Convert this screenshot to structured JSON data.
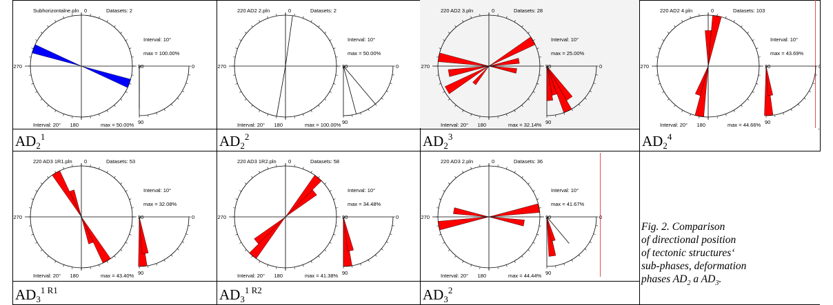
{
  "plots": [
    {
      "id": "ad2-1",
      "file": "Subhorizontalne.pln",
      "datasets": "Datasets: 2",
      "interval_rose": "Interval: 10°",
      "max_rose": "max = 100.00%",
      "interval_bottom": "Interval: 20°",
      "max_bottom": "max = 50.00%",
      "fill": "#0000ff",
      "petals": [
        [
          110,
          1.0
        ]
      ],
      "dip_lines": [
        [
          0.0,
          0.52
        ],
        [
          0.0,
          0.86
        ]
      ],
      "dip_petals": [],
      "labels": {
        "n": "0",
        "e": "90",
        "s": "180",
        "w": "270",
        "r0": "0",
        "r90": "90"
      },
      "caption": {
        "main": "AD",
        "sub": "2",
        "sup": "1"
      }
    },
    {
      "id": "ad2-2",
      "file": "220 AD2 2.pln",
      "datasets": "Datasets: 2",
      "interval_rose": "Interval: 10°",
      "max_rose": "max = 50.00%",
      "interval_bottom": "Interval: 20°",
      "max_bottom": "max = 100.00%",
      "fill": "#ff0000",
      "lines": [
        8,
        190
      ],
      "petals": [],
      "dip_lines": [
        [
          40,
          1.0
        ],
        [
          15,
          1.0
        ]
      ],
      "dip_petals": [],
      "labels": {
        "n": "0",
        "e": "90",
        "s": "180",
        "w": "270",
        "r0": "0",
        "r90": "90"
      },
      "caption": {
        "main": "AD",
        "sub": "2",
        "sup": "2"
      }
    },
    {
      "id": "ad2-3",
      "file": "220 AD2 3.pln",
      "datasets": "Datasets: 28",
      "interval_rose": "Interval: 10°",
      "max_rose": "max = 25.00%",
      "interval_bottom": "Interval: 20°",
      "max_bottom": "max = 32.14%",
      "fill": "#ff0000",
      "petals": [
        [
          60,
          1.0
        ],
        [
          80,
          0.6
        ],
        [
          100,
          0.55
        ],
        [
          240,
          0.95
        ],
        [
          260,
          0.8
        ],
        [
          280,
          1.0
        ],
        [
          220,
          0.45
        ]
      ],
      "dip_lines": [],
      "dip_petals": [
        [
          15,
          0.6
        ],
        [
          25,
          1.0
        ],
        [
          35,
          0.8
        ],
        [
          5,
          0.7
        ]
      ],
      "labels": {
        "n": "0",
        "e": "90",
        "s": "180",
        "w": "270",
        "r0": "0",
        "r90": "90"
      },
      "caption": {
        "main": "AD",
        "sub": "2",
        "sup": "3"
      }
    },
    {
      "id": "ad2-4",
      "file": "220 AD2 4.pln",
      "datasets": "Datasets: 103",
      "interval_rose": "Interval: 10°",
      "max_rose": "max = 43.69%",
      "interval_bottom": "Interval: 20°",
      "max_bottom": "max = 44.66%",
      "fill": "#ff0000",
      "petals": [
        [
          10,
          1.0
        ],
        [
          0,
          0.7
        ],
        [
          190,
          1.0
        ],
        [
          200,
          0.6
        ]
      ],
      "dip_lines": [],
      "dip_petals": [
        [
          3,
          1.0
        ],
        [
          8,
          0.6
        ]
      ],
      "labels": {
        "n": "0",
        "e": "90",
        "s": "180",
        "w": "270",
        "r0": "0",
        "r90": "90"
      },
      "caption": {
        "main": "AD",
        "sub": "2",
        "sup": "4"
      }
    },
    {
      "id": "ad3-1r1",
      "file": "220 AD3 1R1.pln",
      "datasets": "Datasets: 53",
      "interval_rose": "Interval: 10°",
      "max_rose": "max = 32.08%",
      "interval_bottom": "Interval: 20°",
      "max_bottom": "max = 43.40%",
      "fill": "#ff0000",
      "petals": [
        [
          330,
          1.0
        ],
        [
          340,
          0.55
        ],
        [
          150,
          1.0
        ],
        [
          160,
          0.55
        ]
      ],
      "dip_lines": [],
      "dip_petals": [
        [
          4,
          1.0
        ],
        [
          9,
          0.75
        ]
      ],
      "labels": {
        "n": "0",
        "e": "90",
        "s": "180",
        "w": "270",
        "r0": "0",
        "r90": "90"
      },
      "caption": {
        "main": "AD",
        "sub": "3",
        "sup": "1 R1"
      }
    },
    {
      "id": "ad3-1r2",
      "file": "220 AD3 1R2.pln",
      "datasets": "Datasets: 58",
      "interval_rose": "Interval: 10°",
      "max_rose": "max = 34.48%",
      "interval_bottom": "Interval: 20°",
      "max_bottom": "max = 41.38%",
      "fill": "#ff0000",
      "petals": [
        [
          40,
          1.0
        ],
        [
          50,
          0.75
        ],
        [
          220,
          1.0
        ],
        [
          230,
          0.75
        ]
      ],
      "dip_lines": [],
      "dip_petals": [
        [
          5,
          1.0
        ],
        [
          12,
          0.7
        ]
      ],
      "labels": {
        "n": "0",
        "e": "90",
        "s": "180",
        "w": "270",
        "r0": "0",
        "r90": "90"
      },
      "caption": {
        "main": "AD",
        "sub": "3",
        "sup": "1 R2"
      }
    },
    {
      "id": "ad3-2",
      "file": "220 AD3 2.pln",
      "datasets": "Datasets: 36",
      "interval_rose": "Interval: 10°",
      "max_rose": "max = 41.67%",
      "interval_bottom": "Interval: 20°",
      "max_bottom": "max = 44.44%",
      "fill": "#ff0000",
      "petals": [
        [
          80,
          1.0
        ],
        [
          100,
          0.7
        ],
        [
          260,
          1.0
        ],
        [
          280,
          0.7
        ]
      ],
      "dip_lines": [
        [
          40,
          0.7
        ]
      ],
      "dip_petals": [
        [
          8,
          0.8
        ],
        [
          15,
          0.5
        ]
      ],
      "labels": {
        "n": "0",
        "e": "90",
        "s": "180",
        "w": "270",
        "r0": "0",
        "r90": "90"
      },
      "caption": {
        "main": "AD",
        "sub": "3",
        "sup": "2"
      }
    }
  ],
  "figure_caption": {
    "lines": [
      "Fig. 2.  Comparison",
      "of directional position",
      "of tectonic structures‘",
      "sub-phases, deformation"
    ],
    "last_prefix": "phases AD",
    "last_sub1": "2",
    "last_mid": " a AD",
    "last_sub2": "3",
    "last_suffix": "."
  }
}
